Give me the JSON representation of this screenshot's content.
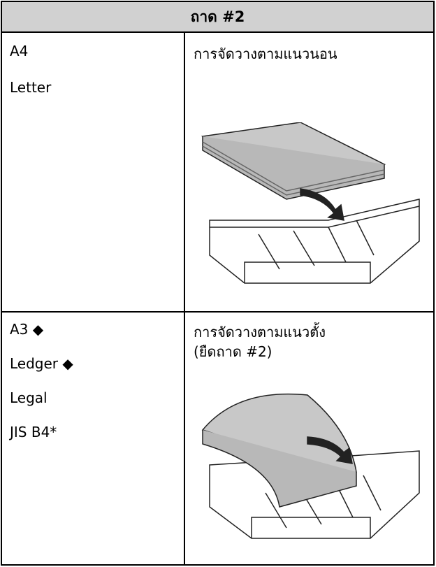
{
  "header": {
    "title": "ถาด #2"
  },
  "table": {
    "rows": [
      {
        "sizes": [
          "A4",
          "Letter"
        ],
        "orientation": [
          "การจัดวางตามแนวนอน"
        ]
      },
      {
        "sizes": [
          "A3 ◆",
          "Ledger ◆",
          "Legal",
          "JIS B4*"
        ],
        "orientation": [
          "การจัดวางตามแนวตั้ง",
          "(ยืดถาด #2)"
        ]
      }
    ]
  }
}
